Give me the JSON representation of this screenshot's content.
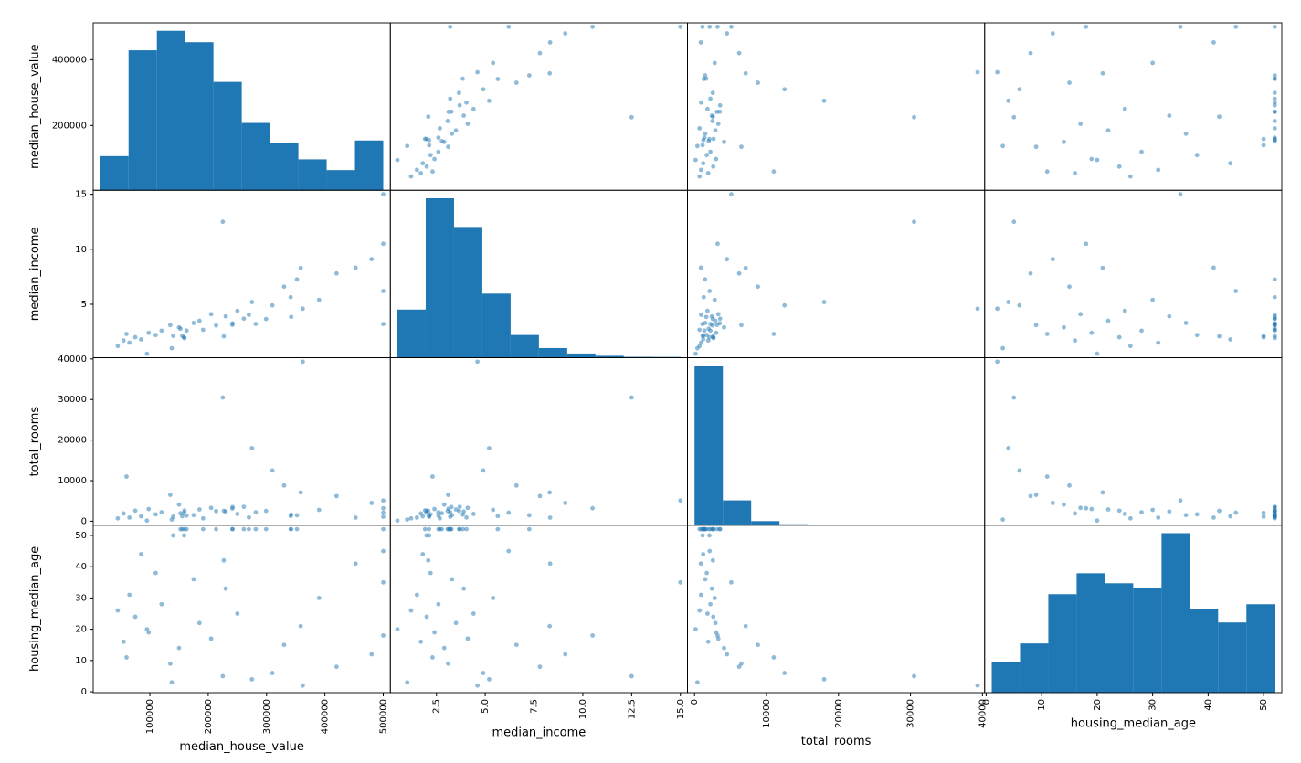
{
  "chart_data": {
    "type": "scatter_matrix",
    "color": "#1f77b4",
    "variables": [
      {
        "name": "median_house_value",
        "lim": [
          2874,
          512126
        ],
        "yticks": [
          200000,
          400000
        ],
        "xticks": [
          100000,
          200000,
          300000,
          400000,
          500000
        ],
        "bins": [
          14999,
          63499.2,
          111999.4,
          160499.6,
          208999.8,
          257500,
          306000.2,
          354500.4,
          403000.6,
          451500.8,
          500001
        ],
        "counts": [
          876,
          3586,
          4086,
          3794,
          2777,
          1726,
          1209,
          792,
          517,
          1276
        ]
      },
      {
        "name": "median_income",
        "lim": [
          0.1374,
          15.3626
        ],
        "yticks": [
          5,
          10,
          15
        ],
        "xticks": [
          {
            "value": 2.5,
            "label": "2.5"
          },
          {
            "value": 5,
            "label": "5.0"
          },
          {
            "value": 7.5,
            "label": "7.5"
          },
          {
            "value": 10,
            "label": "10.0"
          },
          {
            "value": 12.5,
            "label": "12.5"
          },
          {
            "value": 15,
            "label": "15.0"
          }
        ],
        "bins": [
          0.4999,
          1.95,
          3.4005,
          4.8505,
          6.3005,
          7.75,
          9.2,
          10.65,
          12.1,
          13.55,
          15.0001
        ],
        "counts": [
          2247,
          7436,
          6098,
          2990,
          1060,
          449,
          196,
          89,
          40,
          35
        ]
      },
      {
        "name": "total_rooms",
        "lim": [
          -981,
          40303
        ],
        "yticks": [
          0,
          10000,
          20000,
          30000,
          40000
        ],
        "xticks": [
          0,
          10000,
          20000,
          30000,
          40000
        ],
        "bins": [
          2,
          3933.8,
          7865.6,
          11797.4,
          15729.2,
          19661,
          23592.8,
          27524.6,
          31456.4,
          35388.2,
          39320
        ],
        "counts": [
          17344,
          2700,
          440,
          100,
          30,
          13,
          6,
          3,
          2,
          2
        ]
      },
      {
        "name": "housing_median_age",
        "lim": [
          -0.275,
          53.275
        ],
        "yticks": [
          0,
          10,
          20,
          30,
          40,
          50
        ],
        "xticks": [
          0,
          10,
          20,
          30,
          40,
          50
        ],
        "bins": [
          1,
          6.1,
          11.2,
          16.3,
          21.4,
          26.5,
          31.6,
          36.7,
          41.8,
          46.9,
          52
        ],
        "counts": [
          700,
          1112,
          2225,
          2698,
          2472,
          2369,
          3604,
          1895,
          1586,
          1998
        ]
      }
    ],
    "rows": [
      [
        452600,
        8.3252,
        880,
        41
      ],
      [
        358500,
        8.3014,
        7099,
        21
      ],
      [
        352100,
        7.2574,
        1467,
        52
      ],
      [
        341300,
        5.6431,
        1274,
        52
      ],
      [
        342200,
        3.8462,
        1627,
        52
      ],
      [
        269700,
        4.0368,
        919,
        52
      ],
      [
        299200,
        3.6591,
        2535,
        52
      ],
      [
        241400,
        3.12,
        3104,
        52
      ],
      [
        226700,
        2.0804,
        2555,
        42
      ],
      [
        261100,
        3.6912,
        3549,
        52
      ],
      [
        281500,
        3.2031,
        2202,
        52
      ],
      [
        241800,
        3.2705,
        3503,
        52
      ],
      [
        213500,
        3.075,
        2491,
        52
      ],
      [
        191300,
        2.6736,
        696,
        52
      ],
      [
        159200,
        1.9167,
        2643,
        52
      ],
      [
        140000,
        2.125,
        1120,
        50
      ],
      [
        152500,
        2.775,
        1966,
        52
      ],
      [
        155500,
        2.1202,
        1228,
        52
      ],
      [
        158700,
        1.9911,
        2059,
        50
      ],
      [
        162900,
        2.6033,
        1377,
        52
      ],
      [
        500001,
        15.0001,
        5100,
        35
      ],
      [
        500001,
        10.5,
        3200,
        18
      ],
      [
        500001,
        6.2,
        2100,
        45
      ],
      [
        480000,
        9.1,
        4500,
        12
      ],
      [
        420000,
        7.8,
        6200,
        8
      ],
      [
        390000,
        5.4,
        2800,
        30
      ],
      [
        330000,
        6.6,
        8800,
        15
      ],
      [
        310000,
        4.9,
        12500,
        6
      ],
      [
        275000,
        5.2,
        18000,
        4
      ],
      [
        250000,
        4.4,
        1800,
        25
      ],
      [
        230000,
        3.9,
        2400,
        33
      ],
      [
        205000,
        4.1,
        3300,
        17
      ],
      [
        185000,
        3.5,
        2900,
        22
      ],
      [
        175000,
        3.3,
        1500,
        36
      ],
      [
        150000,
        2.9,
        4100,
        14
      ],
      [
        135000,
        3.1,
        6500,
        9
      ],
      [
        120000,
        2.6,
        2200,
        28
      ],
      [
        110000,
        2.2,
        1700,
        38
      ],
      [
        98000,
        2.4,
        3000,
        19
      ],
      [
        85000,
        1.8,
        1200,
        44
      ],
      [
        75000,
        2.0,
        2600,
        24
      ],
      [
        65000,
        1.5,
        900,
        31
      ],
      [
        55000,
        1.7,
        1900,
        16
      ],
      [
        45000,
        1.2,
        700,
        26
      ],
      [
        137500,
        1.0,
        400,
        3
      ],
      [
        95000,
        0.4999,
        150,
        20
      ],
      [
        225000,
        12.5,
        30500,
        5
      ],
      [
        362000,
        4.6,
        39320,
        2
      ],
      [
        500001,
        3.2,
        1100,
        52
      ],
      [
        60000,
        2.3,
        11000,
        11
      ]
    ]
  }
}
